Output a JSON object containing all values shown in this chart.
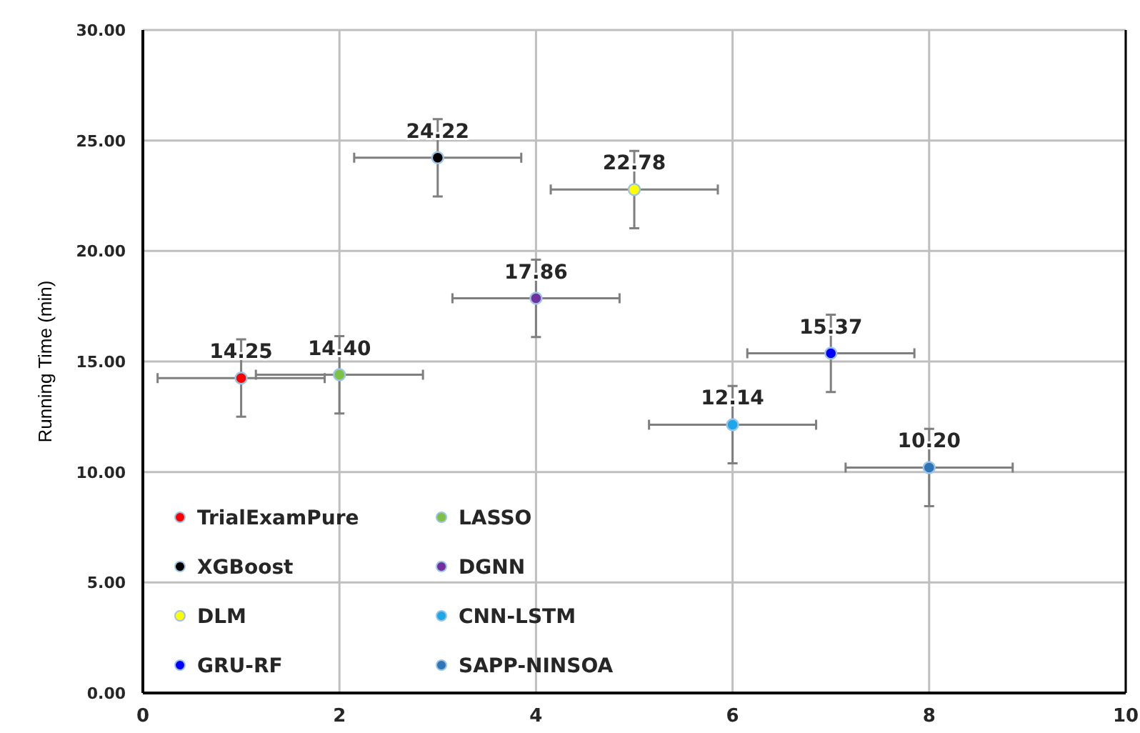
{
  "chart_data": {
    "type": "scatter",
    "ylabel": "Running Time (min)",
    "xlim": [
      0,
      10
    ],
    "xticks": [
      0,
      2,
      4,
      6,
      8,
      10
    ],
    "ylim": [
      0,
      30
    ],
    "yticks": [
      {
        "value": 0,
        "label": "0.00"
      },
      {
        "value": 5,
        "label": "5.00"
      },
      {
        "value": 10,
        "label": "10.00"
      },
      {
        "value": 15,
        "label": "15.00"
      },
      {
        "value": 20,
        "label": "20.00"
      },
      {
        "value": 25,
        "label": "25.00"
      },
      {
        "value": 30,
        "label": "30.00"
      }
    ],
    "grid": true,
    "legend": "bottom left",
    "marker": "circle",
    "series": [
      {
        "name": "TrialExamPure",
        "color": "#ff0000",
        "x": [
          1
        ],
        "values": [
          14.25
        ],
        "value_labels": [
          "14.25"
        ],
        "errors": [
          1.75
        ],
        "xerrors": [
          0.85
        ]
      },
      {
        "name": "LASSO",
        "color": "#7dc242",
        "x": [
          2
        ],
        "values": [
          14.4
        ],
        "value_labels": [
          "14.40"
        ],
        "errors": [
          1.75
        ],
        "xerrors": [
          0.85
        ]
      },
      {
        "name": "XGBoost",
        "color": "#000000",
        "x": [
          3
        ],
        "values": [
          24.22
        ],
        "value_labels": [
          "24.22"
        ],
        "errors": [
          1.75
        ],
        "xerrors": [
          0.85
        ]
      },
      {
        "name": "DGNN",
        "color": "#7030a0",
        "x": [
          4
        ],
        "values": [
          17.86
        ],
        "value_labels": [
          "17.86"
        ],
        "errors": [
          1.75
        ],
        "xerrors": [
          0.85
        ]
      },
      {
        "name": "DLM",
        "color": "#ffff00",
        "x": [
          5
        ],
        "values": [
          22.78
        ],
        "value_labels": [
          "22.78"
        ],
        "errors": [
          1.75
        ],
        "xerrors": [
          0.85
        ]
      },
      {
        "name": "CNN-LSTM",
        "color": "#1ea7e8",
        "x": [
          6
        ],
        "values": [
          12.14
        ],
        "value_labels": [
          "12.14"
        ],
        "errors": [
          1.75
        ],
        "xerrors": [
          0.85
        ]
      },
      {
        "name": "GRU-RF",
        "color": "#0000ff",
        "x": [
          7
        ],
        "values": [
          15.37
        ],
        "value_labels": [
          "15.37"
        ],
        "errors": [
          1.75
        ],
        "xerrors": [
          0.85
        ]
      },
      {
        "name": "SAPP-NINSOA",
        "color": "#2e75b6",
        "x": [
          8
        ],
        "values": [
          10.2
        ],
        "value_labels": [
          "10.20"
        ],
        "errors": [
          1.75
        ],
        "xerrors": [
          0.85
        ]
      }
    ]
  }
}
